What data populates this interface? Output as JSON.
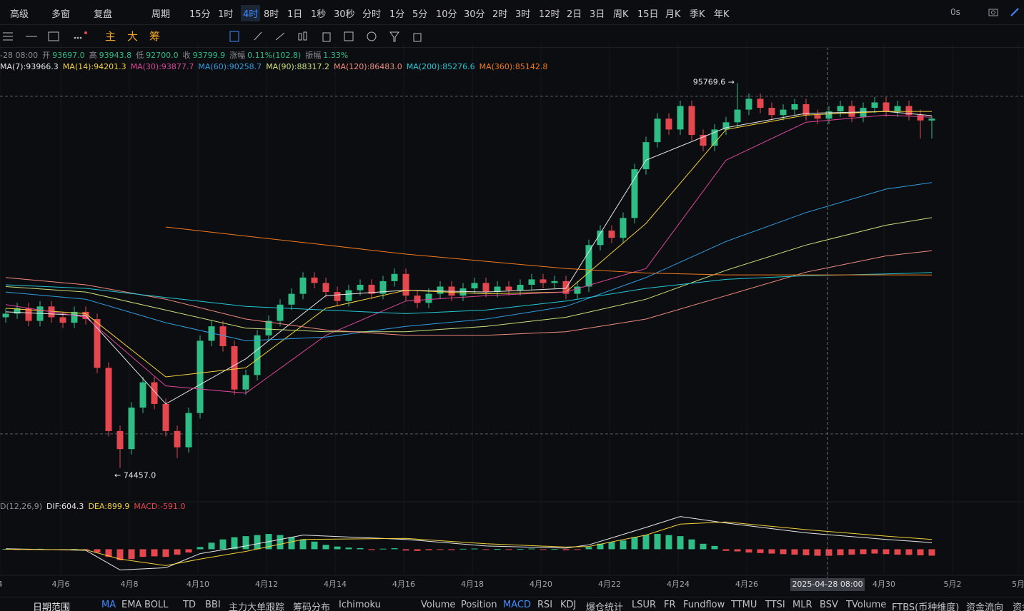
{
  "toolbar": {
    "items": [
      "高级",
      "多窗",
      "复盘",
      "周期",
      "15分",
      "1时",
      "4时",
      "8时",
      "1日",
      "1秒",
      "30秒",
      "分时",
      "1分",
      "5分",
      "10分",
      "30分",
      "2时",
      "3时",
      "12时",
      "2日",
      "3日",
      "周K",
      "15日",
      "月K",
      "季K",
      "年K"
    ],
    "active": 6,
    "right": "0s"
  },
  "subtoolbar": {
    "labels": [
      "主",
      "大",
      "筹"
    ]
  },
  "info": {
    "time": "-28 08:00",
    "items": [
      {
        "label": "开",
        "value": "93697.0"
      },
      {
        "label": "高",
        "value": "93943.8"
      },
      {
        "label": "低",
        "value": "92700.0"
      },
      {
        "label": "收",
        "value": "93799.9"
      },
      {
        "label": "涨幅",
        "value": "0.11%(102.8)"
      },
      {
        "label": "振幅",
        "value": "1.33%"
      }
    ]
  },
  "chart_data": {
    "type": "candlestick",
    "up_color": "#2ebd85",
    "down_color": "#e5474f",
    "xlim": [
      -0.5,
      89.0625
    ],
    "ylim": [
      72700,
      98000
    ],
    "xticks": [
      {
        "value": -0.5,
        "label": "4"
      },
      {
        "value": 4.8125,
        "label": "4月6"
      },
      {
        "value": 10.8125,
        "label": "4月8"
      },
      {
        "value": 16.8125,
        "label": "4月10"
      },
      {
        "value": 22.8125,
        "label": "4月12"
      },
      {
        "value": 28.8125,
        "label": "4月14"
      },
      {
        "value": 34.8125,
        "label": "4月16"
      },
      {
        "value": 40.8125,
        "label": "4月18"
      },
      {
        "value": 46.8125,
        "label": "4月20"
      },
      {
        "value": 52.8125,
        "label": "4月22"
      },
      {
        "value": 58.8125,
        "label": "4月24"
      },
      {
        "value": 64.8125,
        "label": "4月26"
      },
      {
        "value": 76.8125,
        "label": "4月30"
      },
      {
        "value": 82.8125,
        "label": "5月2"
      },
      {
        "value": 88.5625,
        "label": "5月"
      }
    ],
    "grid": true,
    "ohlc": [
      [
        82800,
        83300,
        82500,
        83000
      ],
      [
        83000,
        83600,
        82700,
        83300
      ],
      [
        83300,
        83600,
        82300,
        82600
      ],
      [
        82600,
        83700,
        82300,
        83400
      ],
      [
        83400,
        83700,
        82500,
        82800
      ],
      [
        82800,
        83100,
        82200,
        82500
      ],
      [
        82500,
        83400,
        82200,
        83100
      ],
      [
        83100,
        83400,
        82400,
        82700
      ],
      [
        82700,
        83000,
        79700,
        80000
      ],
      [
        80000,
        80300,
        76200,
        76500
      ],
      [
        76500,
        76800,
        74457,
        75500
      ],
      [
        75500,
        78100,
        75200,
        77800
      ],
      [
        77800,
        79500,
        77500,
        79200
      ],
      [
        79200,
        79500,
        77700,
        78000
      ],
      [
        78000,
        78300,
        76200,
        76500
      ],
      [
        76500,
        76800,
        75000,
        75600
      ],
      [
        75600,
        77800,
        75300,
        77500
      ],
      [
        77500,
        81800,
        77200,
        81500
      ],
      [
        81500,
        82600,
        81200,
        82300
      ],
      [
        82300,
        82600,
        80900,
        81200
      ],
      [
        81200,
        81500,
        78500,
        78800
      ],
      [
        78800,
        79900,
        78500,
        79600
      ],
      [
        79600,
        82100,
        79300,
        81800
      ],
      [
        81800,
        82900,
        81500,
        82600
      ],
      [
        82600,
        83800,
        82300,
        83500
      ],
      [
        83500,
        84400,
        83200,
        84100
      ],
      [
        84100,
        85300,
        83800,
        85000
      ],
      [
        85000,
        85300,
        84400,
        84700
      ],
      [
        84700,
        85000,
        83900,
        84200
      ],
      [
        84200,
        84500,
        83400,
        83700
      ],
      [
        83700,
        84600,
        83400,
        84300
      ],
      [
        84300,
        84900,
        84000,
        84600
      ],
      [
        84600,
        84900,
        83800,
        84100
      ],
      [
        84100,
        85100,
        83800,
        84800
      ],
      [
        84800,
        85500,
        84500,
        85200
      ],
      [
        85200,
        85500,
        83700,
        84000
      ],
      [
        84000,
        84300,
        83300,
        83600
      ],
      [
        83600,
        84400,
        83300,
        84100
      ],
      [
        84100,
        84800,
        83800,
        84500
      ],
      [
        84500,
        84800,
        83700,
        84000
      ],
      [
        84000,
        84700,
        83700,
        84400
      ],
      [
        84400,
        85000,
        84100,
        84700
      ],
      [
        84700,
        85000,
        83900,
        84200
      ],
      [
        84200,
        84800,
        83900,
        84500
      ],
      [
        84500,
        84800,
        84000,
        84300
      ],
      [
        84300,
        84900,
        84000,
        84600
      ],
      [
        84600,
        85200,
        84300,
        84900
      ],
      [
        84900,
        85200,
        84400,
        84700
      ],
      [
        84700,
        85100,
        84400,
        84800
      ],
      [
        84800,
        85100,
        83800,
        84100
      ],
      [
        84100,
        84800,
        83800,
        84500
      ],
      [
        84500,
        87100,
        84200,
        86800
      ],
      [
        86800,
        87900,
        86500,
        87600
      ],
      [
        87600,
        87900,
        86900,
        87200
      ],
      [
        87200,
        88600,
        86900,
        88300
      ],
      [
        88300,
        91300,
        88000,
        91000
      ],
      [
        91000,
        92800,
        90700,
        92500
      ],
      [
        92500,
        94100,
        92200,
        93800
      ],
      [
        93800,
        94100,
        92900,
        93200
      ],
      [
        93200,
        94800,
        92900,
        94500
      ],
      [
        94500,
        94800,
        92600,
        92900
      ],
      [
        92900,
        93200,
        92000,
        92300
      ],
      [
        92300,
        93500,
        92000,
        93200
      ],
      [
        93200,
        93900,
        92900,
        93600
      ],
      [
        93600,
        95769.6,
        93300,
        94300
      ],
      [
        94300,
        95200,
        94000,
        94900
      ],
      [
        94900,
        95200,
        94100,
        94400
      ],
      [
        94400,
        94700,
        93700,
        94000
      ],
      [
        94000,
        94600,
        93700,
        94300
      ],
      [
        94300,
        94900,
        94000,
        94600
      ],
      [
        94600,
        94900,
        93700,
        94000
      ],
      [
        94000,
        94300,
        93500,
        93800
      ],
      [
        93800,
        94500,
        93500,
        94200
      ],
      [
        94200,
        94800,
        93900,
        94500
      ],
      [
        94500,
        94800,
        93600,
        93900
      ],
      [
        93900,
        94700,
        93600,
        94400
      ],
      [
        94400,
        95000,
        94100,
        94700
      ],
      [
        94700,
        95000,
        93900,
        94200
      ],
      [
        94200,
        94800,
        93900,
        94500
      ],
      [
        94500,
        94800,
        93700,
        94000
      ],
      [
        94000,
        94300,
        92700,
        93700
      ],
      [
        93697,
        93943.8,
        92700,
        93799.9
      ]
    ],
    "series": [
      {
        "name": "MA(7):93966.3",
        "color": "#e6e6e6",
        "x": [
          0,
          7,
          14,
          21,
          28,
          35,
          42,
          49,
          56,
          63,
          70,
          77,
          81
        ],
        "values": [
          83100,
          82900,
          78000,
          80500,
          84000,
          84300,
          84200,
          84400,
          91500,
          93300,
          94100,
          94200,
          93966
        ]
      },
      {
        "name": "MA(14):94201.3",
        "color": "#f2d13b",
        "x": [
          0,
          7,
          14,
          21,
          28,
          35,
          42,
          49,
          56,
          63,
          70,
          77,
          81
        ],
        "values": [
          83300,
          83000,
          79500,
          80000,
          83300,
          84300,
          84100,
          84200,
          88000,
          93200,
          94000,
          94200,
          94201
        ]
      },
      {
        "name": "MA(30):93877.7",
        "color": "#d9469a",
        "x": [
          0,
          7,
          14,
          21,
          28,
          35,
          42,
          49,
          56,
          63,
          70,
          77,
          81
        ],
        "values": [
          83500,
          82800,
          79000,
          78600,
          81800,
          83700,
          84000,
          84200,
          85500,
          91500,
          93600,
          94000,
          93878
        ]
      },
      {
        "name": "MA(60):90258.7",
        "color": "#2f9de0",
        "x": [
          0,
          7,
          14,
          21,
          28,
          35,
          42,
          49,
          56,
          63,
          70,
          77,
          81
        ],
        "values": [
          84200,
          83800,
          82500,
          81500,
          81700,
          82300,
          82700,
          83400,
          85000,
          87000,
          88600,
          89900,
          90259
        ]
      },
      {
        "name": "MA(90):88317.2",
        "color": "#c8e07a",
        "x": [
          0,
          7,
          14,
          21,
          28,
          35,
          42,
          49,
          56,
          63,
          70,
          77,
          81
        ],
        "values": [
          84500,
          84200,
          83200,
          82200,
          82000,
          82000,
          82300,
          82800,
          83800,
          85400,
          86800,
          87900,
          88317
        ]
      },
      {
        "name": "MA(120):86483.0",
        "color": "#f08a7e",
        "x": [
          0,
          7,
          14,
          21,
          28,
          35,
          42,
          49,
          56,
          63,
          70,
          77,
          81
        ],
        "values": [
          85000,
          84600,
          83800,
          82700,
          82100,
          81800,
          81800,
          82000,
          82700,
          84000,
          85300,
          86200,
          86483
        ]
      },
      {
        "name": "MA(200):85276.6",
        "color": "#22c7d6",
        "x": [
          0,
          7,
          14,
          21,
          28,
          35,
          42,
          49,
          56,
          63,
          70,
          77,
          81
        ],
        "values": [
          84600,
          84400,
          83900,
          83400,
          83200,
          83000,
          83200,
          83700,
          84400,
          84900,
          85100,
          85200,
          85277
        ]
      },
      {
        "name": "MA(360):85142.8",
        "color": "#f07a1e",
        "x": [
          0,
          7,
          14,
          21,
          28,
          35,
          42,
          49,
          56,
          63,
          70,
          77,
          81
        ],
        "values": [
          null,
          null,
          87800,
          87300,
          86800,
          86300,
          85900,
          85500,
          85250,
          85150,
          85150,
          85150,
          85143
        ]
      }
    ],
    "annotations": [
      {
        "label": "95769.6 →",
        "x": 64,
        "y": 95769.6
      },
      {
        "label": "← 74457.0",
        "x": 10,
        "y": 74457
      }
    ],
    "price_lines": [
      95040,
      76340
    ],
    "crosshair": {
      "x": 71.875,
      "label": "2025-04-28 08:00"
    },
    "macd": {
      "title": "D(12,26,9)",
      "ylim": [
        -2000,
        3500
      ],
      "legend": [
        {
          "name": "DIF:604.3",
          "color": "#e6e6e6"
        },
        {
          "name": "DEA:899.9",
          "color": "#f2d13b"
        },
        {
          "name": "MACD:-591.0",
          "color": "#e5474f"
        }
      ],
      "dif": {
        "x": [
          0,
          7,
          10,
          14,
          17,
          21,
          26,
          35,
          42,
          49,
          51,
          56,
          59,
          63,
          70,
          77,
          81
        ],
        "values": [
          50,
          -100,
          -1900,
          -1700,
          -400,
          300,
          1300,
          900,
          300,
          100,
          400,
          2000,
          3000,
          2400,
          1500,
          900,
          604
        ]
      },
      "dea": {
        "x": [
          0,
          7,
          10,
          14,
          17,
          21,
          26,
          35,
          42,
          49,
          51,
          56,
          59,
          63,
          70,
          77,
          81
        ],
        "values": [
          0,
          -50,
          -900,
          -1500,
          -900,
          -200,
          900,
          1000,
          500,
          200,
          250,
          1300,
          2300,
          2500,
          1800,
          1200,
          900
        ]
      },
      "hist": [
        30,
        -20,
        -60,
        40,
        -50,
        -80,
        20,
        -60,
        -300,
        -700,
        -1000,
        -900,
        -700,
        -650,
        -700,
        -500,
        -300,
        200,
        600,
        900,
        1100,
        1200,
        1300,
        1400,
        1300,
        1100,
        900,
        700,
        400,
        250,
        150,
        100,
        -80,
        50,
        90,
        -120,
        -150,
        -100,
        -60,
        -80,
        40,
        60,
        -50,
        30,
        -40,
        20,
        60,
        -30,
        20,
        -100,
        -60,
        200,
        500,
        650,
        800,
        1100,
        1300,
        1400,
        1300,
        1200,
        900,
        500,
        300,
        -150,
        -200,
        -300,
        -350,
        -400,
        -450,
        -500,
        -550,
        -600,
        -600,
        -550,
        -500,
        -450,
        -400,
        -450,
        -500,
        -520,
        -560,
        -591
      ]
    }
  },
  "bottom_bar": {
    "title": "日期范围",
    "items": [
      "MA",
      "EMA",
      "BOLL",
      "TD",
      "BBI",
      "主力大单跟踪",
      "筹码分布",
      "Ichimoku",
      "Volume",
      "Position",
      "MACD",
      "RSI",
      "KDJ",
      "爆仓统计",
      "LSUR",
      "FR",
      "Fundflow",
      "TTMU",
      "TTSI",
      "MLR",
      "BSV",
      "TVolume",
      "FTBS(币种维度)",
      "资金流向",
      "资金"
    ],
    "active": [
      0,
      10
    ]
  }
}
